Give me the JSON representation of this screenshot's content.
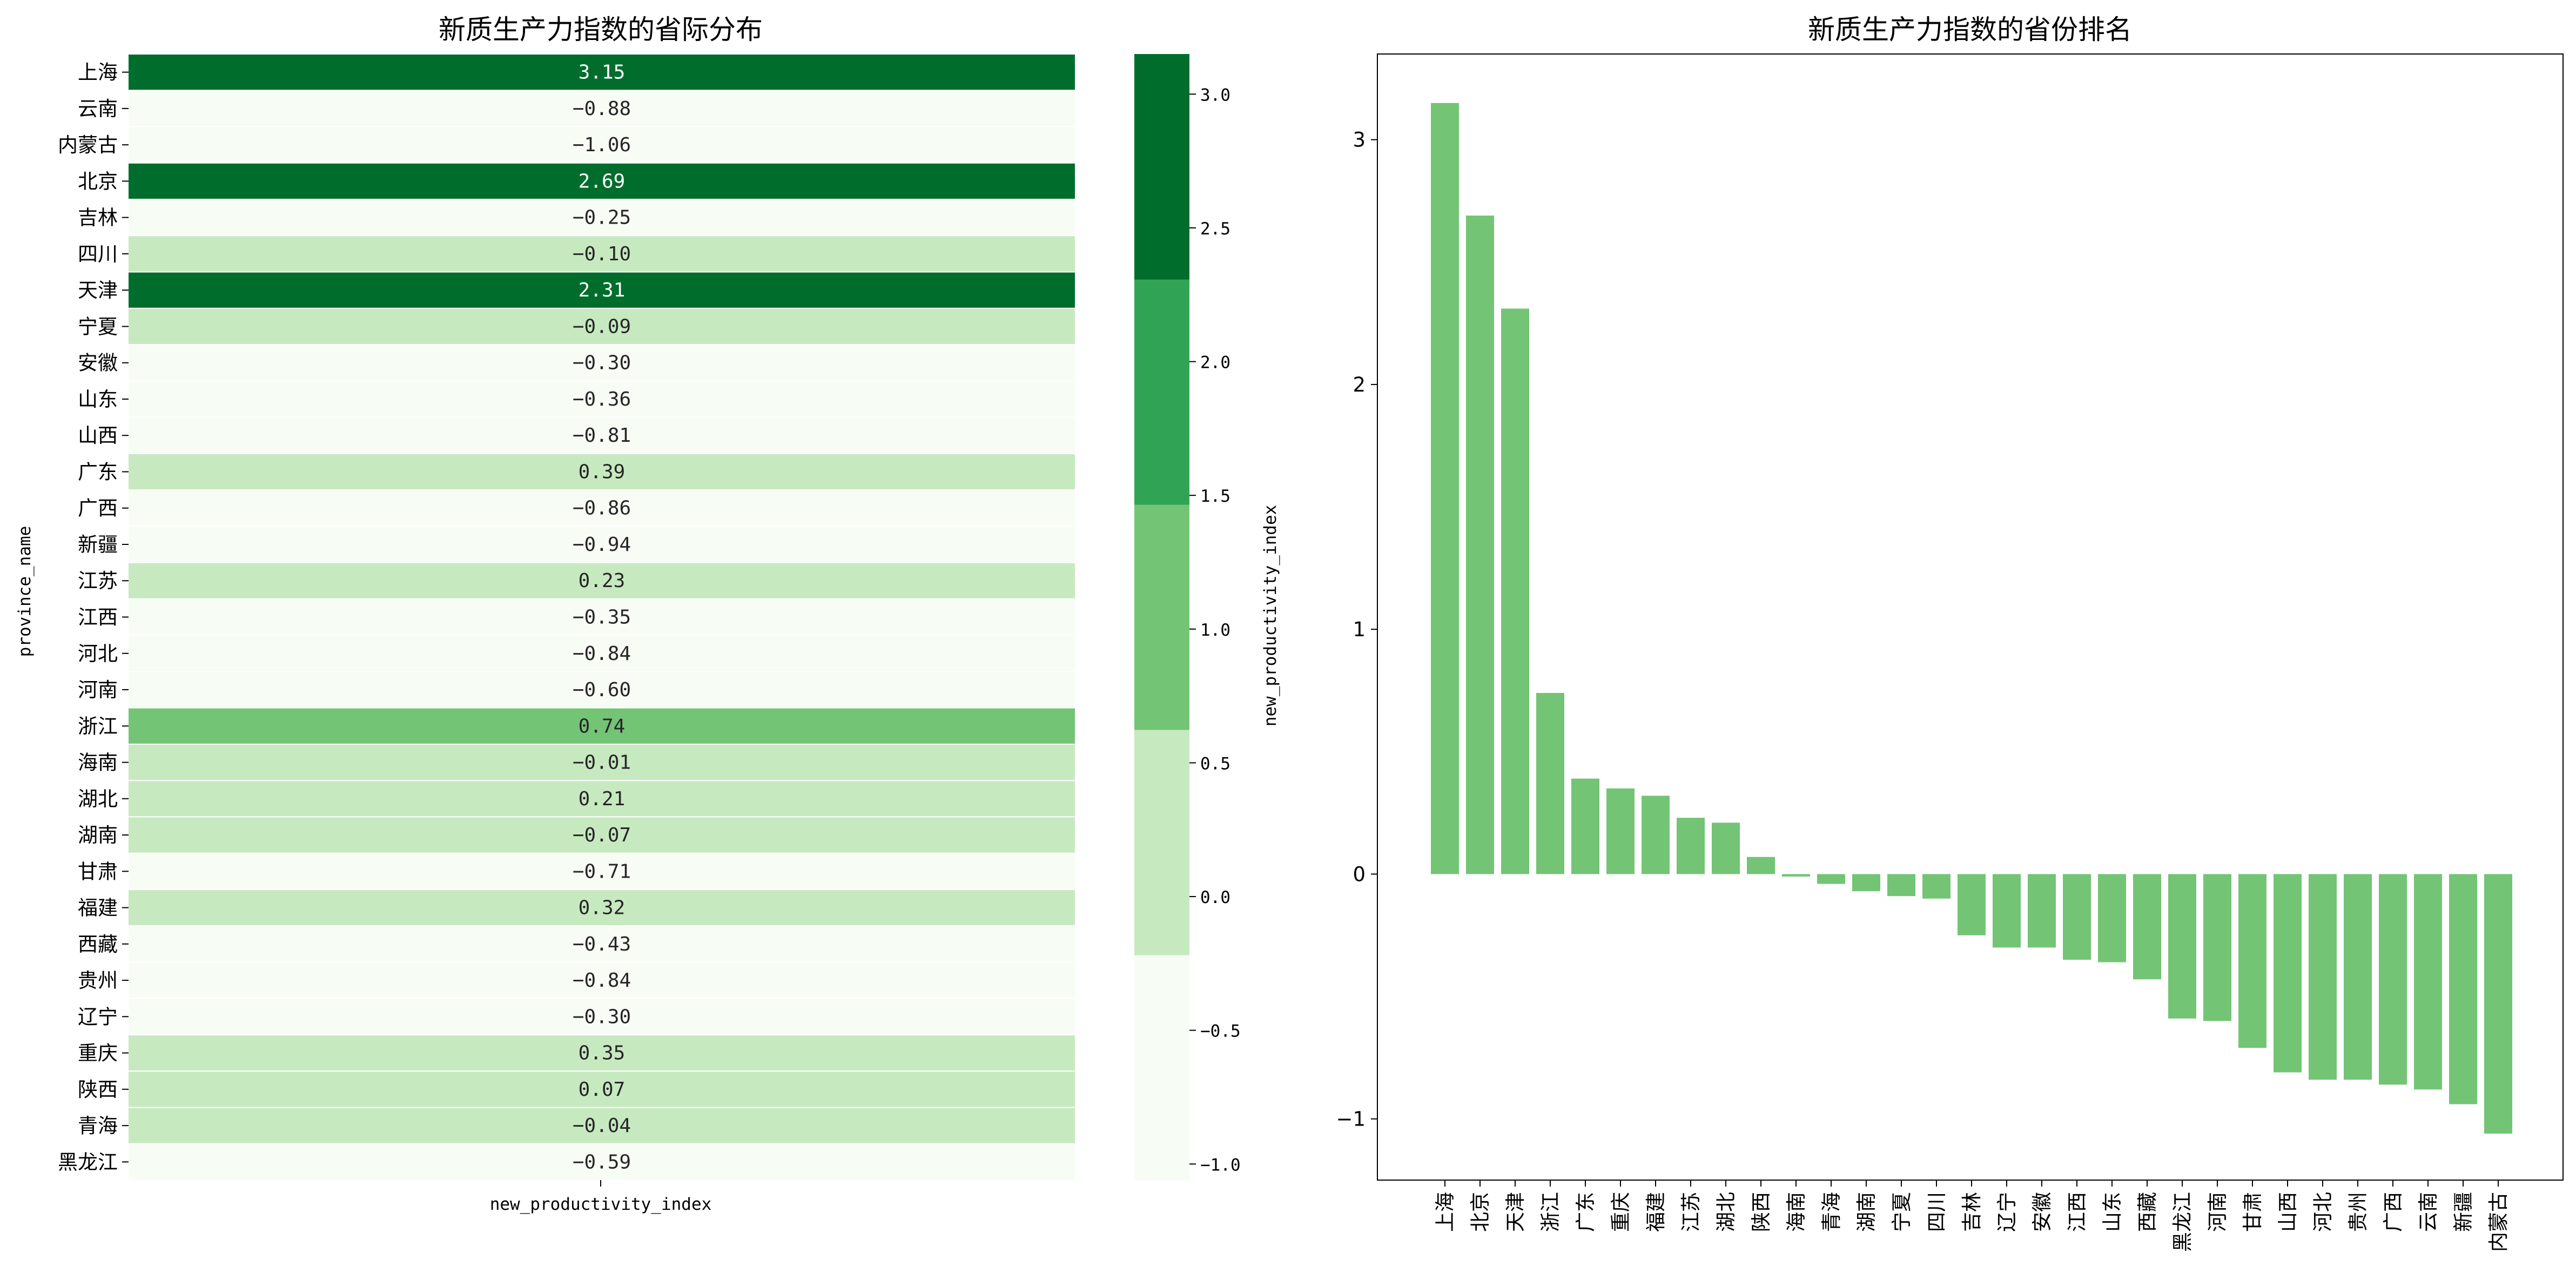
{
  "colors": {
    "bar": "#74c476",
    "scale": [
      "#f7fcf5",
      "#c7e9c0",
      "#74c476",
      "#31a354",
      "#006d2c"
    ]
  },
  "chart_data": [
    {
      "type": "heatmap",
      "title": "新质生产力指数的省际分布",
      "xlabel": "new_productivity_index",
      "ylabel": "province_name",
      "colorbar_label": "new_productivity_index",
      "colorbar_ticks": [
        "−1.0",
        "−0.5",
        "0.0",
        "0.5",
        "1.0",
        "1.5",
        "2.0",
        "2.5",
        "3.0"
      ],
      "colorbar_range": [
        -1.06,
        3.15
      ],
      "x_tick": "new_productivity_index",
      "rows": [
        {
          "label": "上海",
          "value": 3.15,
          "text": "3.15"
        },
        {
          "label": "云南",
          "value": -0.88,
          "text": "−0.88"
        },
        {
          "label": "内蒙古",
          "value": -1.06,
          "text": "−1.06"
        },
        {
          "label": "北京",
          "value": 2.69,
          "text": "2.69"
        },
        {
          "label": "吉林",
          "value": -0.25,
          "text": "−0.25"
        },
        {
          "label": "四川",
          "value": -0.1,
          "text": "−0.10"
        },
        {
          "label": "天津",
          "value": 2.31,
          "text": "2.31"
        },
        {
          "label": "宁夏",
          "value": -0.09,
          "text": "−0.09"
        },
        {
          "label": "安徽",
          "value": -0.3,
          "text": "−0.30"
        },
        {
          "label": "山东",
          "value": -0.36,
          "text": "−0.36"
        },
        {
          "label": "山西",
          "value": -0.81,
          "text": "−0.81"
        },
        {
          "label": "广东",
          "value": 0.39,
          "text": "0.39"
        },
        {
          "label": "广西",
          "value": -0.86,
          "text": "−0.86"
        },
        {
          "label": "新疆",
          "value": -0.94,
          "text": "−0.94"
        },
        {
          "label": "江苏",
          "value": 0.23,
          "text": "0.23"
        },
        {
          "label": "江西",
          "value": -0.35,
          "text": "−0.35"
        },
        {
          "label": "河北",
          "value": -0.84,
          "text": "−0.84"
        },
        {
          "label": "河南",
          "value": -0.6,
          "text": "−0.60"
        },
        {
          "label": "浙江",
          "value": 0.74,
          "text": "0.74"
        },
        {
          "label": "海南",
          "value": -0.01,
          "text": "−0.01"
        },
        {
          "label": "湖北",
          "value": 0.21,
          "text": "0.21"
        },
        {
          "label": "湖南",
          "value": -0.07,
          "text": "−0.07"
        },
        {
          "label": "甘肃",
          "value": -0.71,
          "text": "−0.71"
        },
        {
          "label": "福建",
          "value": 0.32,
          "text": "0.32"
        },
        {
          "label": "西藏",
          "value": -0.43,
          "text": "−0.43"
        },
        {
          "label": "贵州",
          "value": -0.84,
          "text": "−0.84"
        },
        {
          "label": "辽宁",
          "value": -0.3,
          "text": "−0.30"
        },
        {
          "label": "重庆",
          "value": 0.35,
          "text": "0.35"
        },
        {
          "label": "陕西",
          "value": 0.07,
          "text": "0.07"
        },
        {
          "label": "青海",
          "value": -0.04,
          "text": "−0.04"
        },
        {
          "label": "黑龙江",
          "value": -0.59,
          "text": "−0.59"
        }
      ]
    },
    {
      "type": "bar",
      "title": "新质生产力指数的省份排名",
      "xlabel": "",
      "ylabel": "",
      "ylim": [
        -1.25,
        3.35
      ],
      "y_ticks": [
        -1,
        0,
        1,
        2,
        3
      ],
      "y_tick_labels": [
        "−1",
        "0",
        "1",
        "2",
        "3"
      ],
      "categories": [
        "上海",
        "北京",
        "天津",
        "浙江",
        "广东",
        "重庆",
        "福建",
        "江苏",
        "湖北",
        "陕西",
        "海南",
        "青海",
        "湖南",
        "宁夏",
        "四川",
        "吉林",
        "辽宁",
        "安徽",
        "江西",
        "山东",
        "西藏",
        "黑龙江",
        "河南",
        "甘肃",
        "山西",
        "河北",
        "贵州",
        "广西",
        "云南",
        "新疆",
        "内蒙古"
      ],
      "values": [
        3.15,
        2.69,
        2.31,
        0.74,
        0.39,
        0.35,
        0.32,
        0.23,
        0.21,
        0.07,
        -0.01,
        -0.04,
        -0.07,
        -0.09,
        -0.1,
        -0.25,
        -0.3,
        -0.3,
        -0.35,
        -0.36,
        -0.43,
        -0.59,
        -0.6,
        -0.71,
        -0.81,
        -0.84,
        -0.84,
        -0.86,
        -0.88,
        -0.94,
        -1.06
      ]
    }
  ]
}
